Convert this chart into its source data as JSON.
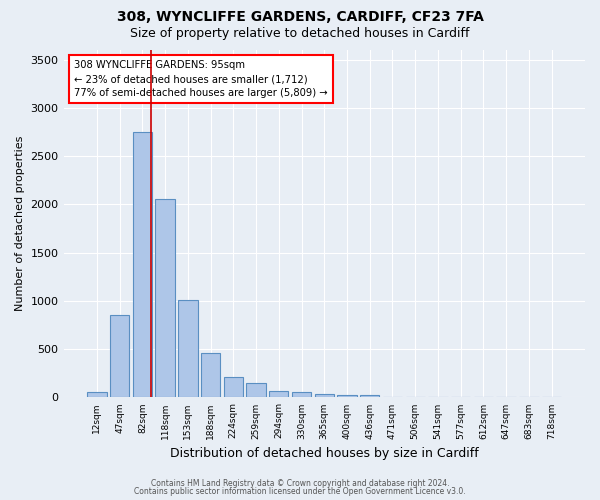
{
  "title1": "308, WYNCLIFFE GARDENS, CARDIFF, CF23 7FA",
  "title2": "Size of property relative to detached houses in Cardiff",
  "xlabel": "Distribution of detached houses by size in Cardiff",
  "ylabel": "Number of detached properties",
  "footnote1": "Contains HM Land Registry data © Crown copyright and database right 2024.",
  "footnote2": "Contains public sector information licensed under the Open Government Licence v3.0.",
  "bin_labels": [
    "12sqm",
    "47sqm",
    "82sqm",
    "118sqm",
    "153sqm",
    "188sqm",
    "224sqm",
    "259sqm",
    "294sqm",
    "330sqm",
    "365sqm",
    "400sqm",
    "436sqm",
    "471sqm",
    "506sqm",
    "541sqm",
    "577sqm",
    "612sqm",
    "647sqm",
    "683sqm",
    "718sqm"
  ],
  "bar_heights": [
    55,
    855,
    2750,
    2060,
    1010,
    460,
    215,
    145,
    70,
    55,
    35,
    25,
    30,
    0,
    0,
    0,
    0,
    0,
    0,
    0,
    0
  ],
  "bar_color": "#aec6e8",
  "bar_edge_color": "#5a8fc2",
  "vline_color": "#cc0000",
  "background_color": "#e8eef5",
  "grid_color": "#ffffff",
  "ylim": [
    0,
    3600
  ],
  "yticks": [
    0,
    500,
    1000,
    1500,
    2000,
    2500,
    3000,
    3500
  ],
  "annotation_box_text_line1": "308 WYNCLIFFE GARDENS: 95sqm",
  "annotation_box_text_line2": "← 23% of detached houses are smaller (1,712)",
  "annotation_box_text_line3": "77% of semi-detached houses are larger (5,809) →",
  "vline_x_pos": 2.36
}
